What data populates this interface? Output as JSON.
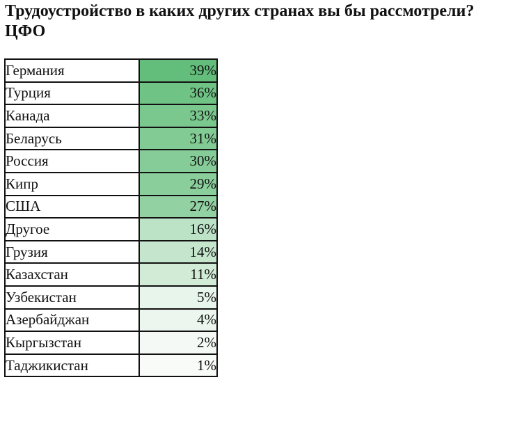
{
  "title_line1": "Трудоустройство в каких других странах вы бы рассмотрели?",
  "title_line2": "ЦФО",
  "chart_data": {
    "type": "table",
    "title": "Трудоустройство в каких других странах вы бы рассмотрели? ЦФО",
    "color_scale": {
      "low": "#f8fbf8",
      "high": "#63be7b"
    },
    "rows": [
      {
        "country": "Германия",
        "value": 39,
        "label": "39%"
      },
      {
        "country": "Турция",
        "value": 36,
        "label": "36%"
      },
      {
        "country": "Канада",
        "value": 33,
        "label": "33%"
      },
      {
        "country": "Беларусь",
        "value": 31,
        "label": "31%"
      },
      {
        "country": "Россия",
        "value": 30,
        "label": "30%"
      },
      {
        "country": "Кипр",
        "value": 29,
        "label": "29%"
      },
      {
        "country": "США",
        "value": 27,
        "label": "27%"
      },
      {
        "country": "Другое",
        "value": 16,
        "label": "16%"
      },
      {
        "country": "Грузия",
        "value": 14,
        "label": "14%"
      },
      {
        "country": "Казахстан",
        "value": 11,
        "label": "11%"
      },
      {
        "country": "Узбекистан",
        "value": 5,
        "label": "5%"
      },
      {
        "country": "Азербайджан",
        "value": 4,
        "label": "4%"
      },
      {
        "country": "Кыргызстан",
        "value": 2,
        "label": "2%"
      },
      {
        "country": "Таджикистан",
        "value": 1,
        "label": "1%"
      }
    ]
  }
}
